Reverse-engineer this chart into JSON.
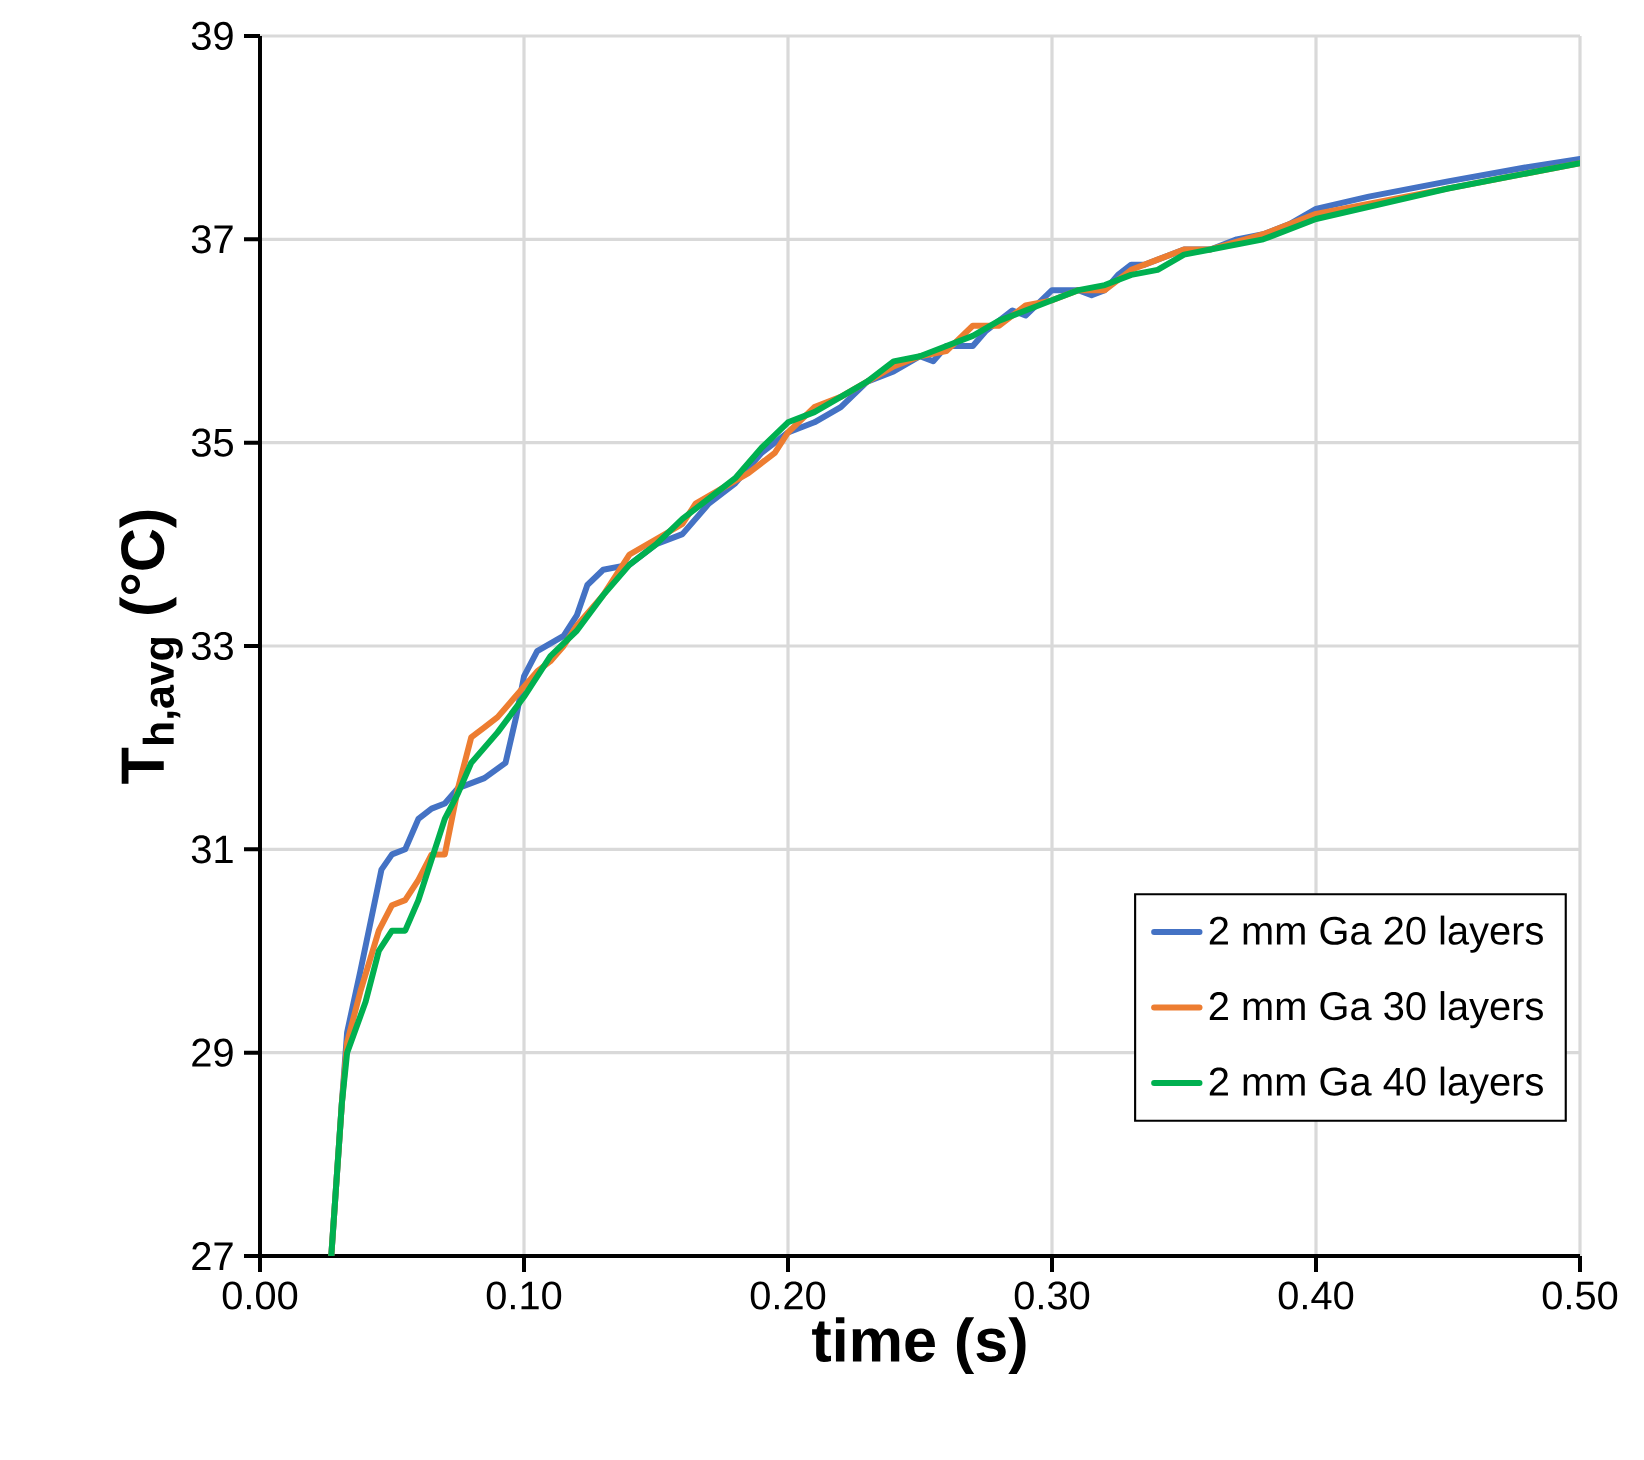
{
  "chart_data": {
    "type": "line",
    "xlabel": "time (s)",
    "ylabel": "T$_{h,avg}$ (°C)",
    "xlim": [
      0,
      0.5
    ],
    "ylim": [
      27,
      39
    ],
    "xticks": [
      {
        "value": 0,
        "label": "0.00"
      },
      {
        "value": 0.1,
        "label": "0.10"
      },
      {
        "value": 0.2,
        "label": "0.20"
      },
      {
        "value": 0.3,
        "label": "0.30"
      },
      {
        "value": 0.4,
        "label": "0.40"
      },
      {
        "value": 0.5,
        "label": "0.50"
      }
    ],
    "yticks": [
      27,
      29,
      31,
      33,
      35,
      37,
      39
    ],
    "grid": true,
    "legend": "bottom right",
    "marker": "none",
    "line_style": "solid",
    "series": [
      {
        "name": "2 mm Ga 20 layers",
        "color": "#4472c4",
        "x": [
          0.027,
          0.031,
          0.033,
          0.038,
          0.042,
          0.046,
          0.05,
          0.055,
          0.06,
          0.065,
          0.07,
          0.075,
          0.085,
          0.093,
          0.097,
          0.1,
          0.105,
          0.115,
          0.12,
          0.124,
          0.13,
          0.14,
          0.15,
          0.16,
          0.17,
          0.18,
          0.19,
          0.2,
          0.21,
          0.22,
          0.23,
          0.24,
          0.25,
          0.255,
          0.26,
          0.27,
          0.275,
          0.285,
          0.29,
          0.3,
          0.31,
          0.315,
          0.32,
          0.325,
          0.33,
          0.335,
          0.34,
          0.35,
          0.36,
          0.37,
          0.38,
          0.39,
          0.4,
          0.42,
          0.45,
          0.48,
          0.5
        ],
        "values": [
          27.0,
          28.5,
          29.2,
          29.8,
          30.3,
          30.8,
          30.95,
          31.0,
          31.3,
          31.4,
          31.45,
          31.6,
          31.7,
          31.85,
          32.3,
          32.7,
          32.95,
          33.1,
          33.3,
          33.6,
          33.75,
          33.8,
          34.0,
          34.1,
          34.4,
          34.6,
          34.9,
          35.1,
          35.2,
          35.35,
          35.6,
          35.7,
          35.85,
          35.8,
          35.95,
          35.95,
          36.1,
          36.3,
          36.25,
          36.5,
          36.5,
          36.45,
          36.5,
          36.65,
          36.75,
          36.75,
          36.8,
          36.9,
          36.9,
          37.0,
          37.05,
          37.15,
          37.3,
          37.42,
          37.57,
          37.71,
          37.79
        ]
      },
      {
        "name": "2 mm Ga 30 layers",
        "color": "#ed7d31",
        "x": [
          0.027,
          0.031,
          0.033,
          0.038,
          0.045,
          0.05,
          0.055,
          0.06,
          0.065,
          0.07,
          0.075,
          0.08,
          0.085,
          0.09,
          0.1,
          0.105,
          0.11,
          0.115,
          0.12,
          0.125,
          0.13,
          0.14,
          0.15,
          0.16,
          0.165,
          0.175,
          0.185,
          0.195,
          0.2,
          0.21,
          0.22,
          0.23,
          0.24,
          0.25,
          0.26,
          0.27,
          0.28,
          0.29,
          0.3,
          0.31,
          0.32,
          0.33,
          0.34,
          0.35,
          0.36,
          0.38,
          0.4,
          0.45,
          0.5
        ],
        "values": [
          27.0,
          28.5,
          29.1,
          29.6,
          30.2,
          30.45,
          30.5,
          30.7,
          30.95,
          30.95,
          31.6,
          32.1,
          32.2,
          32.3,
          32.6,
          32.75,
          32.85,
          33.0,
          33.2,
          33.35,
          33.5,
          33.9,
          34.05,
          34.2,
          34.4,
          34.55,
          34.7,
          34.9,
          35.1,
          35.35,
          35.45,
          35.6,
          35.75,
          35.85,
          35.9,
          36.15,
          36.15,
          36.35,
          36.4,
          36.5,
          36.5,
          36.7,
          36.8,
          36.9,
          36.9,
          37.05,
          37.25,
          37.5,
          37.75
        ]
      },
      {
        "name": "2 mm Ga 40 layers",
        "color": "#00b050",
        "x": [
          0.027,
          0.031,
          0.033,
          0.04,
          0.045,
          0.05,
          0.055,
          0.06,
          0.065,
          0.07,
          0.075,
          0.08,
          0.09,
          0.1,
          0.11,
          0.12,
          0.13,
          0.14,
          0.15,
          0.16,
          0.17,
          0.18,
          0.19,
          0.2,
          0.21,
          0.22,
          0.23,
          0.24,
          0.25,
          0.26,
          0.27,
          0.28,
          0.29,
          0.3,
          0.31,
          0.32,
          0.33,
          0.34,
          0.35,
          0.36,
          0.38,
          0.4,
          0.45,
          0.5
        ],
        "values": [
          27.0,
          28.5,
          29.0,
          29.5,
          30.0,
          30.2,
          30.2,
          30.5,
          30.9,
          31.3,
          31.55,
          31.85,
          32.15,
          32.5,
          32.9,
          33.15,
          33.5,
          33.8,
          34.0,
          34.25,
          34.45,
          34.65,
          34.95,
          35.2,
          35.3,
          35.45,
          35.6,
          35.8,
          35.85,
          35.95,
          36.05,
          36.2,
          36.3,
          36.4,
          36.5,
          36.55,
          36.65,
          36.7,
          36.85,
          36.9,
          37.0,
          37.2,
          37.5,
          37.75
        ]
      }
    ]
  }
}
